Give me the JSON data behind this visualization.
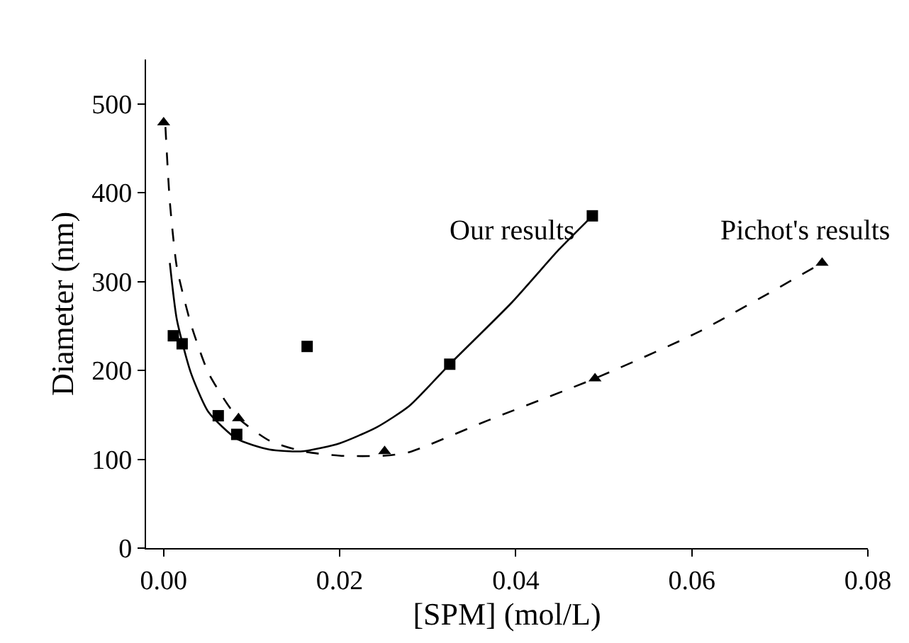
{
  "chart_data": {
    "type": "scatter",
    "xlabel": "[SPM] (mol/L)",
    "ylabel": "Diameter (nm)",
    "xlim": [
      -0.002,
      0.08
    ],
    "xticks": [
      {
        "value": 0,
        "label": "0.00"
      },
      0.02,
      0.04,
      0.06,
      0.08
    ],
    "ylim": [
      0,
      550
    ],
    "yticks": [
      0,
      100,
      200,
      300,
      400,
      500
    ],
    "legend": false,
    "series": [
      {
        "name": "Our results",
        "color": "#000000",
        "marker": "square",
        "x": [
          0.0011,
          0.0021,
          0.0062,
          0.0083,
          0.0163,
          0.0325,
          0.0487
        ],
        "values": [
          239,
          230,
          149,
          128,
          227,
          207,
          374
        ]
      },
      {
        "name": "Pichot's results",
        "color": "#000000",
        "marker": "triangle",
        "x": [
          0.0,
          0.0085,
          0.0251,
          0.049,
          0.0748
        ],
        "values": [
          479,
          146,
          109,
          191,
          321
        ]
      },
      {
        "type": "line",
        "color": "#000000",
        "marker": "none",
        "line_style": "solid",
        "x": [
          0.0007,
          0.0015,
          0.0031,
          0.0051,
          0.0083,
          0.012,
          0.0158,
          0.02,
          0.0242,
          0.0279,
          0.0325,
          0.0396,
          0.0449,
          0.0487
        ],
        "values": [
          321,
          257,
          197,
          153,
          123,
          111,
          109,
          118,
          136,
          160,
          207,
          277,
          336,
          374
        ]
      },
      {
        "type": "line",
        "color": "#000000",
        "marker": "none",
        "line_style": "dashed",
        "x": [
          0.0002,
          0.0007,
          0.0015,
          0.0031,
          0.0051,
          0.0083,
          0.012,
          0.0158,
          0.02,
          0.0251,
          0.0279,
          0.0369,
          0.049,
          0.0607,
          0.0748
        ],
        "values": [
          474,
          390,
          316,
          252,
          197,
          148,
          121,
          109,
          104,
          104,
          108,
          144,
          191,
          243,
          321
        ]
      }
    ]
  }
}
